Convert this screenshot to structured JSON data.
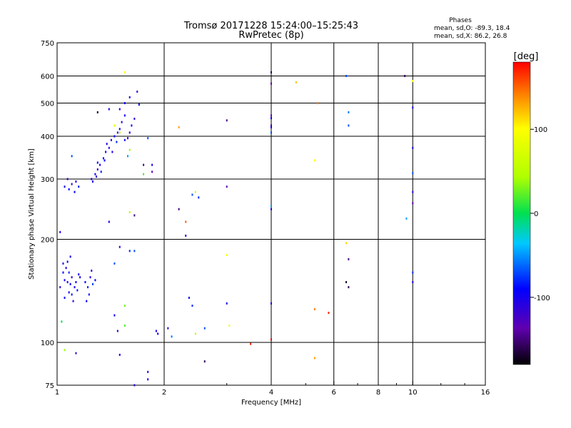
{
  "title_line1": "Tromsø 20171228 15:24:00–15:25:43",
  "title_line2": "RwPretec (8p)",
  "phases": {
    "label": "Phases",
    "line_O": "mean, sd,O: -89.3, 18.4",
    "line_X": "mean, sd,X: 86.2, 26.8"
  },
  "colorbar": {
    "unit": "[deg]",
    "ticks": [
      {
        "value": 100,
        "label": "100"
      },
      {
        "value": 0,
        "label": "0"
      },
      {
        "value": -100,
        "label": "-100"
      }
    ]
  },
  "chart_data": {
    "type": "scatter",
    "xlabel": "Frequency [MHz]",
    "ylabel": "Stationary phase Virtual Height [km]",
    "x_scale": "log",
    "y_scale": "log",
    "xlim": [
      1,
      16
    ],
    "ylim": [
      75,
      750
    ],
    "x_ticks": [
      {
        "value": 1,
        "label": "1"
      },
      {
        "value": 2,
        "label": "2"
      },
      {
        "value": 4,
        "label": "4"
      },
      {
        "value": 6,
        "label": "6"
      },
      {
        "value": 8,
        "label": "8"
      },
      {
        "value": 10,
        "label": "10"
      },
      {
        "value": 16,
        "label": "16"
      }
    ],
    "y_ticks": [
      {
        "value": 75,
        "label": "75"
      },
      {
        "value": 100,
        "label": "100"
      },
      {
        "value": 200,
        "label": "200"
      },
      {
        "value": 300,
        "label": "300"
      },
      {
        "value": 400,
        "label": "400"
      },
      {
        "value": 500,
        "label": "500"
      },
      {
        "value": 600,
        "label": "600"
      },
      {
        "value": 750,
        "label": "750"
      }
    ],
    "x_grid": [
      2,
      4,
      6,
      8,
      10
    ],
    "y_grid": [
      100,
      200,
      300,
      400,
      500,
      600
    ],
    "colorbar_range": [
      -180,
      180
    ],
    "series": [
      {
        "points": [
          [
            1.02,
            210,
            -110
          ],
          [
            1.03,
            115,
            0
          ],
          [
            1.05,
            95,
            40
          ],
          [
            1.13,
            93,
            -120
          ],
          [
            1.05,
            152,
            -110
          ],
          [
            1.07,
            150,
            -115
          ],
          [
            1.09,
            148,
            -100
          ],
          [
            1.1,
            155,
            -120
          ],
          [
            1.12,
            145,
            -110
          ],
          [
            1.04,
            160,
            -100
          ],
          [
            1.06,
            165,
            -115
          ],
          [
            1.08,
            140,
            -110
          ],
          [
            1.1,
            138,
            -95
          ],
          [
            1.13,
            150,
            -105
          ],
          [
            1.15,
            158,
            -110
          ],
          [
            1.02,
            145,
            -120
          ],
          [
            1.07,
            172,
            -105
          ],
          [
            1.09,
            178,
            -110
          ],
          [
            1.05,
            135,
            -100
          ],
          [
            1.11,
            132,
            -120
          ],
          [
            1.14,
            142,
            -95
          ],
          [
            1.16,
            155,
            -110
          ],
          [
            1.04,
            170,
            -118
          ],
          [
            1.08,
            160,
            -90
          ],
          [
            1.2,
            150,
            -100
          ],
          [
            1.22,
            145,
            -90
          ],
          [
            1.24,
            155,
            -110
          ],
          [
            1.26,
            148,
            -85
          ],
          [
            1.23,
            138,
            -95
          ],
          [
            1.21,
            132,
            -100
          ],
          [
            1.25,
            162,
            -112
          ],
          [
            1.28,
            152,
            -100
          ],
          [
            1.05,
            285,
            -110
          ],
          [
            1.08,
            280,
            -105
          ],
          [
            1.1,
            290,
            -120
          ],
          [
            1.12,
            275,
            -100
          ],
          [
            1.07,
            300,
            -115
          ],
          [
            1.13,
            295,
            -110
          ],
          [
            1.15,
            285,
            -95
          ],
          [
            1.1,
            350,
            -80
          ],
          [
            1.25,
            300,
            -110
          ],
          [
            1.28,
            310,
            -105
          ],
          [
            1.3,
            320,
            -120
          ],
          [
            1.32,
            330,
            -115
          ],
          [
            1.35,
            345,
            -110
          ],
          [
            1.3,
            335,
            -100
          ],
          [
            1.37,
            360,
            -105
          ],
          [
            1.4,
            370,
            -120
          ],
          [
            1.38,
            380,
            -110
          ],
          [
            1.42,
            390,
            -115
          ],
          [
            1.45,
            400,
            -110
          ],
          [
            1.48,
            410,
            -120
          ],
          [
            1.5,
            420,
            -105
          ],
          [
            1.52,
            440,
            -115
          ],
          [
            1.55,
            460,
            -100
          ],
          [
            1.5,
            480,
            -110
          ],
          [
            1.58,
            395,
            -120
          ],
          [
            1.6,
            410,
            -110
          ],
          [
            1.62,
            430,
            -105
          ],
          [
            1.65,
            450,
            -115
          ],
          [
            1.6,
            520,
            -110
          ],
          [
            1.68,
            540,
            -120
          ],
          [
            1.55,
            390,
            -108
          ],
          [
            1.47,
            385,
            -90
          ],
          [
            1.43,
            360,
            -112
          ],
          [
            1.36,
            340,
            -100
          ],
          [
            1.33,
            315,
            -95
          ],
          [
            1.29,
            305,
            -118
          ],
          [
            1.26,
            295,
            -110
          ],
          [
            1.5,
            410,
            60
          ],
          [
            1.6,
            365,
            40
          ],
          [
            1.58,
            350,
            -60
          ],
          [
            1.45,
            430,
            80
          ],
          [
            1.4,
            480,
            -110
          ],
          [
            1.55,
            500,
            -100
          ],
          [
            1.3,
            470,
            -170
          ],
          [
            1.4,
            225,
            -110
          ],
          [
            1.55,
            615,
            100
          ],
          [
            1.7,
            495,
            -100
          ],
          [
            1.75,
            330,
            -150
          ],
          [
            1.8,
            395,
            -80
          ],
          [
            1.85,
            330,
            -110
          ],
          [
            1.85,
            315,
            -140
          ],
          [
            1.6,
            240,
            60
          ],
          [
            1.65,
            235,
            -150
          ],
          [
            1.5,
            190,
            -120
          ],
          [
            1.6,
            185,
            -90
          ],
          [
            1.65,
            185,
            -80
          ],
          [
            1.45,
            170,
            -80
          ],
          [
            1.75,
            310,
            20
          ],
          [
            1.45,
            120,
            -110
          ],
          [
            1.55,
            128,
            30
          ],
          [
            1.55,
            112,
            20
          ],
          [
            1.48,
            108,
            -120
          ],
          [
            1.5,
            92,
            -110
          ],
          [
            1.65,
            75,
            -120
          ],
          [
            1.8,
            82,
            -120
          ],
          [
            1.8,
            78,
            -110
          ],
          [
            1.9,
            108,
            -110
          ],
          [
            1.92,
            106,
            -115
          ],
          [
            2.2,
            425,
            130
          ],
          [
            2.2,
            245,
            -150
          ],
          [
            2.3,
            225,
            150
          ],
          [
            2.4,
            270,
            -80
          ],
          [
            2.45,
            275,
            70
          ],
          [
            2.5,
            265,
            -90
          ],
          [
            2.3,
            205,
            -110
          ],
          [
            2.35,
            135,
            -110
          ],
          [
            2.4,
            128,
            -90
          ],
          [
            2.45,
            106,
            60
          ],
          [
            2.6,
            110,
            -80
          ],
          [
            2.05,
            110,
            -120
          ],
          [
            2.1,
            104,
            -70
          ],
          [
            2.6,
            88,
            -160
          ],
          [
            3.0,
            445,
            -150
          ],
          [
            3.0,
            285,
            -140
          ],
          [
            3.0,
            180,
            100
          ],
          [
            3.0,
            130,
            -110
          ],
          [
            3.05,
            112,
            90
          ],
          [
            3.5,
            99,
            170
          ],
          [
            4.0,
            615,
            -160
          ],
          [
            4.0,
            570,
            -140
          ],
          [
            4.0,
            430,
            -150
          ],
          [
            4.0,
            425,
            -110
          ],
          [
            4.0,
            410,
            -80
          ],
          [
            4.0,
            460,
            -140
          ],
          [
            4.0,
            452,
            -100
          ],
          [
            4.0,
            250,
            -60
          ],
          [
            4.0,
            245,
            -110
          ],
          [
            4.0,
            130,
            -110
          ],
          [
            4.0,
            102,
            180
          ],
          [
            4.7,
            575,
            120
          ],
          [
            5.3,
            340,
            100
          ],
          [
            5.4,
            500,
            140
          ],
          [
            5.3,
            125,
            140
          ],
          [
            5.3,
            90,
            130
          ],
          [
            5.8,
            122,
            170
          ],
          [
            6.5,
            600,
            -80
          ],
          [
            6.6,
            470,
            -70
          ],
          [
            6.6,
            430,
            -80
          ],
          [
            6.6,
            175,
            -150
          ],
          [
            6.6,
            145,
            -160
          ],
          [
            6.5,
            150,
            -170
          ],
          [
            6.5,
            195,
            110
          ],
          [
            9.5,
            600,
            -160
          ],
          [
            9.6,
            230,
            -60
          ],
          [
            10,
            580,
            100
          ],
          [
            10,
            485,
            -110
          ],
          [
            10,
            370,
            -110
          ],
          [
            10,
            312,
            -80
          ],
          [
            10,
            275,
            -120
          ],
          [
            10,
            255,
            -140
          ],
          [
            10,
            160,
            -90
          ],
          [
            10,
            150,
            -110
          ]
        ]
      }
    ]
  }
}
